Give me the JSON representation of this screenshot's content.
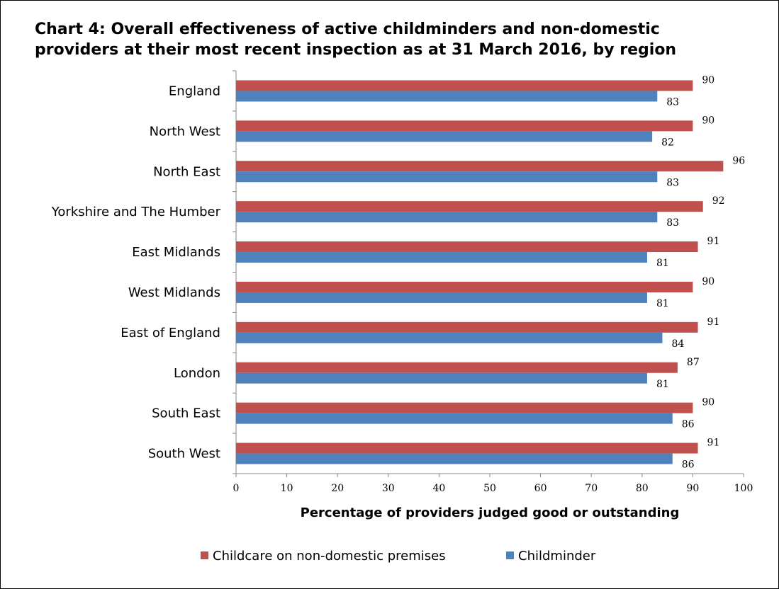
{
  "title_line1": "Chart 4: Overall effectiveness of active childminders and non-domestic",
  "title_line2": "providers at their most recent inspection as at 31 March 2016, by region",
  "chart_data": {
    "type": "bar",
    "orientation": "horizontal",
    "categories": [
      "England",
      "North West",
      "North East",
      "Yorkshire and The Humber",
      "East Midlands",
      "West Midlands",
      "East of England",
      "London",
      "South East",
      "South West"
    ],
    "series": [
      {
        "name": "Childcare on non-domestic premises",
        "color": "#C0504D",
        "values": [
          90,
          90,
          96,
          92,
          91,
          90,
          91,
          87,
          90,
          91
        ]
      },
      {
        "name": "Childminder",
        "color": "#4F81BD",
        "values": [
          83,
          82,
          83,
          83,
          81,
          81,
          84,
          81,
          86,
          86
        ]
      }
    ],
    "xlabel": "Percentage of providers judged good or outstanding",
    "ylabel": "",
    "xlim": [
      0,
      100
    ],
    "xticks": [
      "0",
      "10",
      "20",
      "30",
      "40",
      "50",
      "60",
      "70",
      "80",
      "90",
      "100"
    ],
    "grid": false,
    "legend_position": "bottom"
  }
}
